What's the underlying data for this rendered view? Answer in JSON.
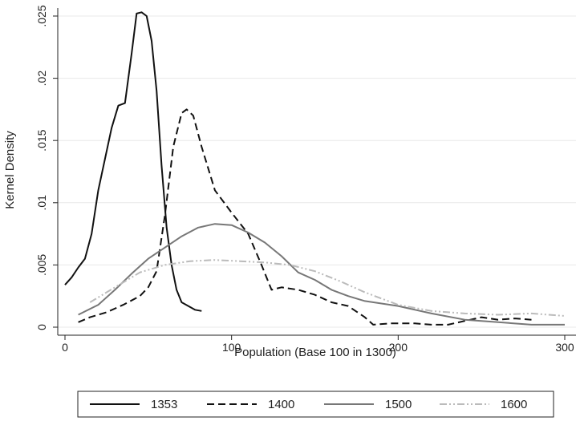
{
  "chart_data": {
    "type": "line",
    "title": "",
    "xlabel": "Population (Base 100 in 1300)",
    "ylabel": "Kernel Density",
    "xlim": [
      0,
      300
    ],
    "ylim": [
      0,
      0.026
    ],
    "x_ticks": [
      0,
      100,
      200,
      300
    ],
    "x_tick_labels": [
      "0",
      "100",
      "200",
      "300"
    ],
    "y_ticks": [
      0,
      0.005,
      0.01,
      0.015,
      0.02,
      0.025
    ],
    "y_tick_labels": [
      "0",
      ".005",
      ".01",
      ".015",
      ".02",
      ".025"
    ],
    "grid": true,
    "legend_position": "bottom",
    "series": [
      {
        "name": "1353",
        "color": "#111111",
        "dash": "solid",
        "x": [
          0,
          4,
          8,
          12,
          16,
          20,
          24,
          28,
          32,
          36,
          40,
          43,
          46,
          49,
          52,
          55,
          58,
          61,
          64,
          67,
          70,
          74,
          78,
          82
        ],
        "y": [
          0.0034,
          0.004,
          0.0048,
          0.0055,
          0.0075,
          0.011,
          0.0135,
          0.016,
          0.0178,
          0.018,
          0.022,
          0.0252,
          0.0253,
          0.025,
          0.023,
          0.019,
          0.013,
          0.008,
          0.005,
          0.003,
          0.002,
          0.0017,
          0.0014,
          0.0013
        ]
      },
      {
        "name": "1400",
        "color": "#111111",
        "dash": "dashed",
        "x": [
          8,
          15,
          25,
          35,
          45,
          50,
          55,
          60,
          65,
          70,
          73,
          77,
          82,
          90,
          100,
          110,
          118,
          124,
          130,
          140,
          150,
          160,
          170,
          180,
          185,
          195,
          210,
          220,
          230,
          240,
          250,
          260,
          270,
          280
        ],
        "y": [
          0.0004,
          0.0008,
          0.0012,
          0.0018,
          0.0025,
          0.0032,
          0.0045,
          0.009,
          0.0145,
          0.0172,
          0.0175,
          0.017,
          0.0145,
          0.011,
          0.0092,
          0.0075,
          0.005,
          0.003,
          0.0032,
          0.003,
          0.0026,
          0.002,
          0.0017,
          0.0008,
          0.0002,
          0.0003,
          0.0003,
          0.0002,
          0.0002,
          0.0005,
          0.0008,
          0.0006,
          0.0007,
          0.0006
        ]
      },
      {
        "name": "1500",
        "color": "#777777",
        "dash": "solid",
        "x": [
          8,
          20,
          30,
          40,
          50,
          60,
          70,
          80,
          90,
          100,
          110,
          120,
          130,
          140,
          150,
          160,
          170,
          180,
          200,
          220,
          240,
          260,
          280,
          300
        ],
        "y": [
          0.001,
          0.0018,
          0.003,
          0.0043,
          0.0055,
          0.0064,
          0.0073,
          0.008,
          0.0083,
          0.0082,
          0.0076,
          0.0068,
          0.0057,
          0.0044,
          0.0038,
          0.003,
          0.0025,
          0.0021,
          0.0017,
          0.0011,
          0.0006,
          0.0004,
          0.0002,
          0.0002
        ]
      },
      {
        "name": "1600",
        "color": "#bbbbbb",
        "dash": "dashdotdot",
        "x": [
          15,
          30,
          45,
          60,
          75,
          90,
          105,
          120,
          135,
          150,
          165,
          180,
          200,
          220,
          240,
          260,
          280,
          300
        ],
        "y": [
          0.002,
          0.0032,
          0.0044,
          0.005,
          0.0053,
          0.0054,
          0.0053,
          0.0052,
          0.005,
          0.0045,
          0.0037,
          0.0028,
          0.0018,
          0.0013,
          0.0011,
          0.001,
          0.0011,
          0.0009
        ]
      }
    ]
  }
}
